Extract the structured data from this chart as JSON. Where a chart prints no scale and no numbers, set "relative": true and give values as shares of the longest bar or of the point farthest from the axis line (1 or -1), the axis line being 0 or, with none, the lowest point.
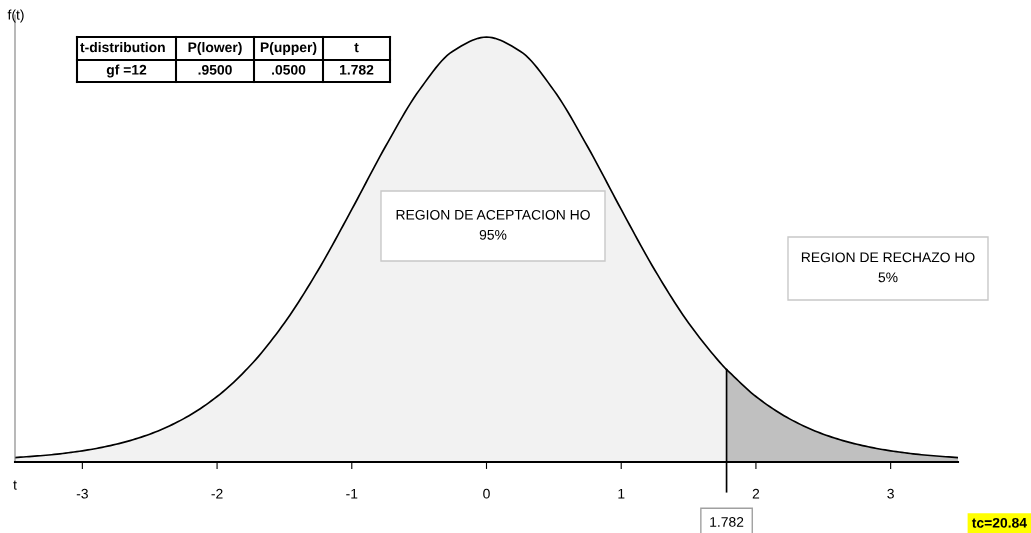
{
  "chart_data": {
    "type": "area",
    "relative": true,
    "xlabel": "t",
    "ylabel": "f(t)",
    "xlim": [
      -3.5,
      3.5
    ],
    "xticks": [
      -3,
      -2,
      -1,
      0,
      1,
      2,
      3
    ],
    "grid": false,
    "series": [
      {
        "color": "#f2f2f2",
        "x": [
          -3.5,
          -3.25,
          -3,
          -2.75,
          -2.5,
          -2.25,
          -2,
          -1.75,
          -1.5,
          -1.25,
          -1,
          -0.75,
          -0.5,
          -0.25,
          0,
          0.25,
          0.5,
          0.75,
          1,
          1.25,
          1.5,
          1.75,
          1.782
        ],
        "values": [
          0.0103,
          0.0165,
          0.0263,
          0.0417,
          0.0655,
          0.1015,
          0.1541,
          0.2282,
          0.3273,
          0.4513,
          0.5944,
          0.7425,
          0.8746,
          0.9668,
          1,
          0.9668,
          0.8746,
          0.7425,
          0.5944,
          0.4513,
          0.3273,
          0.2282,
          0.2174
        ]
      },
      {
        "color": "#c0c0c0",
        "x": [
          1.782,
          2,
          2.25,
          2.5,
          2.75,
          3,
          3.25,
          3.5
        ],
        "values": [
          0.2174,
          0.1541,
          0.1015,
          0.0655,
          0.0417,
          0.0263,
          0.0165,
          0.0103
        ]
      }
    ],
    "ref_lines": [
      {
        "axis": "x",
        "value": 1.782,
        "label": "1.782",
        "color": "#000000"
      }
    ],
    "annotations": [
      "t-distribution",
      "P(lower)",
      "P(upper)",
      "t",
      "gf =12",
      ".9500",
      ".0500",
      "1.782",
      "REGION DE ACEPTACION HO\n95%",
      "REGION DE RECHAZO HO\n5%",
      "tc=20.84"
    ]
  }
}
